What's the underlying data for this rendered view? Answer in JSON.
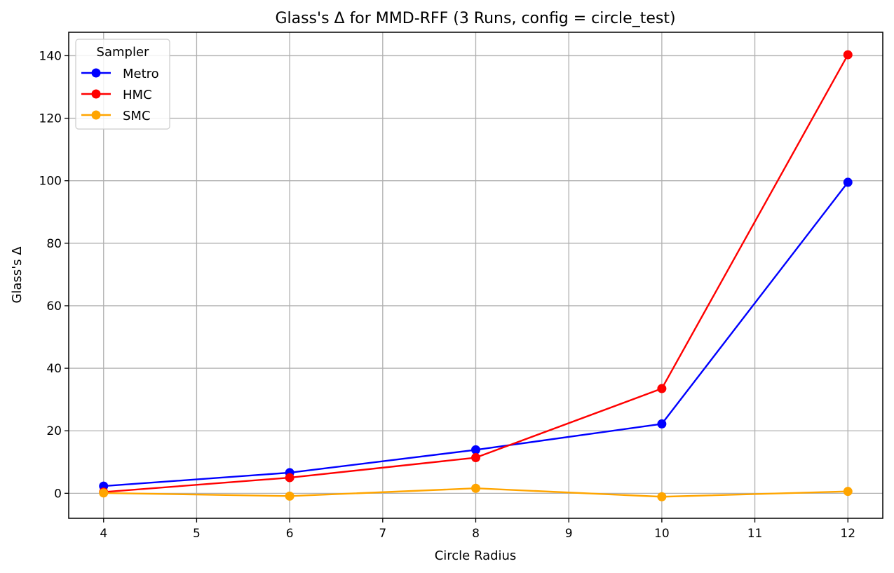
{
  "chart_data": {
    "type": "line",
    "title": "Glass's Δ for MMD-RFF (3 Runs, config = circle_test)",
    "xlabel": "Circle Radius",
    "ylabel": "Glass's Δ",
    "x": [
      4,
      6,
      8,
      10,
      12
    ],
    "xlim": [
      3.625,
      12.375
    ],
    "ylim": [
      -8,
      147.5
    ],
    "xticks": [
      4,
      5,
      6,
      7,
      8,
      9,
      10,
      11,
      12
    ],
    "yticks": [
      0,
      20,
      40,
      60,
      80,
      100,
      120,
      140
    ],
    "grid": true,
    "legend": {
      "title": "Sampler",
      "placement": "top-left"
    },
    "series": [
      {
        "name": "Metro",
        "color": "#0000ff",
        "values": [
          2.3,
          6.6,
          13.9,
          22.2,
          99.5
        ]
      },
      {
        "name": "HMC",
        "color": "#ff0000",
        "values": [
          0.4,
          5.0,
          11.4,
          33.5,
          140.3
        ]
      },
      {
        "name": "SMC",
        "color": "#ffa500",
        "values": [
          0.1,
          -0.9,
          1.6,
          -1.1,
          0.6
        ]
      }
    ]
  }
}
